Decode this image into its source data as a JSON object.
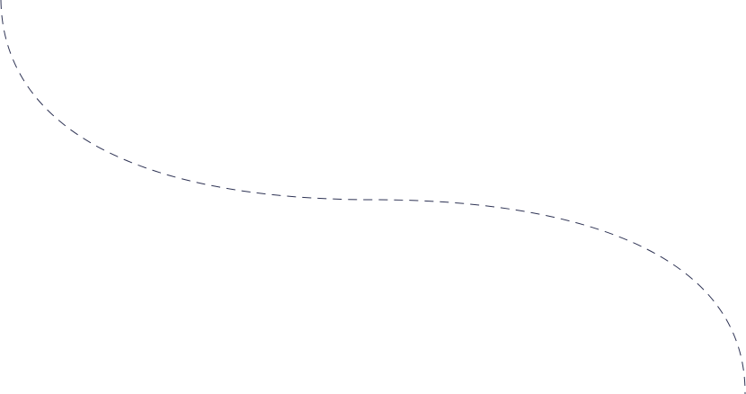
{
  "connector": {
    "style": "dashed",
    "color": "#2e3354"
  }
}
